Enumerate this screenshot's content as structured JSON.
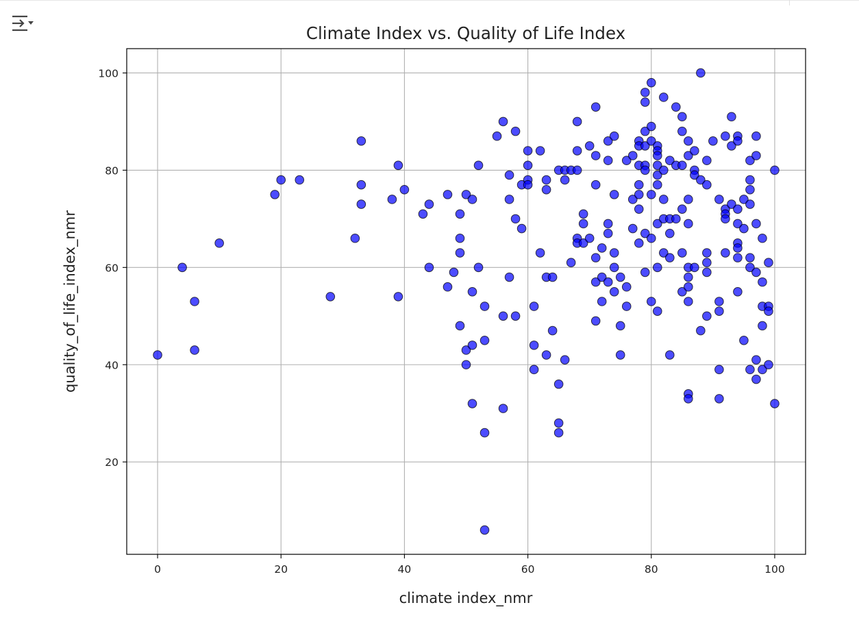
{
  "toolbar": {
    "toggle_icon": "output-toggle-icon"
  },
  "chart_data": {
    "type": "scatter",
    "title": "Climate Index vs. Quality of Life Index",
    "xlabel": "climate index_nmr",
    "ylabel": "quality_of_life_index_nmr",
    "xlim": [
      -5,
      105
    ],
    "ylim": [
      1,
      105
    ],
    "xticks": [
      0,
      20,
      40,
      60,
      80,
      100
    ],
    "yticks": [
      20,
      40,
      60,
      80,
      100
    ],
    "grid": true,
    "marker_color": "#0000ff",
    "marker_edge_color": "#000000",
    "marker_alpha": 0.7,
    "points": [
      [
        0,
        42
      ],
      [
        4,
        60
      ],
      [
        6,
        53
      ],
      [
        6,
        43
      ],
      [
        10,
        65
      ],
      [
        19,
        75
      ],
      [
        20,
        78
      ],
      [
        23,
        78
      ],
      [
        28,
        54
      ],
      [
        32,
        66
      ],
      [
        33,
        86
      ],
      [
        33,
        77
      ],
      [
        33,
        73
      ],
      [
        38,
        74
      ],
      [
        39,
        81
      ],
      [
        39,
        54
      ],
      [
        40,
        76
      ],
      [
        43,
        71
      ],
      [
        44,
        73
      ],
      [
        44,
        60
      ],
      [
        47,
        75
      ],
      [
        47,
        56
      ],
      [
        48,
        59
      ],
      [
        49,
        71
      ],
      [
        49,
        66
      ],
      [
        49,
        63
      ],
      [
        49,
        48
      ],
      [
        50,
        75
      ],
      [
        50,
        43
      ],
      [
        50,
        40
      ],
      [
        51,
        74
      ],
      [
        51,
        55
      ],
      [
        51,
        44
      ],
      [
        51,
        32
      ],
      [
        52,
        81
      ],
      [
        52,
        60
      ],
      [
        53,
        52
      ],
      [
        53,
        45
      ],
      [
        53,
        26
      ],
      [
        53,
        6
      ],
      [
        55,
        87
      ],
      [
        56,
        90
      ],
      [
        56,
        50
      ],
      [
        56,
        31
      ],
      [
        57,
        79
      ],
      [
        57,
        74
      ],
      [
        57,
        58
      ],
      [
        58,
        88
      ],
      [
        58,
        70
      ],
      [
        58,
        50
      ],
      [
        59,
        68
      ],
      [
        59,
        77
      ],
      [
        60,
        84
      ],
      [
        60,
        81
      ],
      [
        60,
        78
      ],
      [
        60,
        77
      ],
      [
        61,
        52
      ],
      [
        61,
        44
      ],
      [
        61,
        39
      ],
      [
        62,
        84
      ],
      [
        62,
        63
      ],
      [
        63,
        78
      ],
      [
        63,
        76
      ],
      [
        63,
        58
      ],
      [
        63,
        42
      ],
      [
        64,
        58
      ],
      [
        64,
        47
      ],
      [
        65,
        36
      ],
      [
        65,
        28
      ],
      [
        65,
        26
      ],
      [
        65,
        80
      ],
      [
        66,
        80
      ],
      [
        66,
        78
      ],
      [
        66,
        41
      ],
      [
        67,
        80
      ],
      [
        67,
        61
      ],
      [
        68,
        90
      ],
      [
        68,
        84
      ],
      [
        68,
        80
      ],
      [
        68,
        66
      ],
      [
        68,
        65
      ],
      [
        69,
        71
      ],
      [
        69,
        69
      ],
      [
        69,
        65
      ],
      [
        70,
        85
      ],
      [
        70,
        66
      ],
      [
        71,
        93
      ],
      [
        71,
        83
      ],
      [
        71,
        77
      ],
      [
        71,
        62
      ],
      [
        71,
        57
      ],
      [
        71,
        49
      ],
      [
        72,
        64
      ],
      [
        72,
        58
      ],
      [
        72,
        53
      ],
      [
        73,
        86
      ],
      [
        73,
        82
      ],
      [
        73,
        69
      ],
      [
        73,
        67
      ],
      [
        73,
        57
      ],
      [
        74,
        87
      ],
      [
        74,
        75
      ],
      [
        74,
        63
      ],
      [
        74,
        60
      ],
      [
        74,
        55
      ],
      [
        75,
        58
      ],
      [
        75,
        48
      ],
      [
        75,
        42
      ],
      [
        76,
        82
      ],
      [
        76,
        56
      ],
      [
        76,
        52
      ],
      [
        77,
        83
      ],
      [
        77,
        74
      ],
      [
        77,
        68
      ],
      [
        78,
        86
      ],
      [
        78,
        85
      ],
      [
        78,
        81
      ],
      [
        78,
        77
      ],
      [
        78,
        75
      ],
      [
        78,
        72
      ],
      [
        78,
        65
      ],
      [
        79,
        96
      ],
      [
        79,
        94
      ],
      [
        79,
        88
      ],
      [
        79,
        85
      ],
      [
        79,
        81
      ],
      [
        79,
        80
      ],
      [
        79,
        67
      ],
      [
        79,
        59
      ],
      [
        80,
        98
      ],
      [
        80,
        89
      ],
      [
        80,
        86
      ],
      [
        80,
        75
      ],
      [
        80,
        66
      ],
      [
        80,
        53
      ],
      [
        81,
        85
      ],
      [
        81,
        84
      ],
      [
        81,
        83
      ],
      [
        81,
        81
      ],
      [
        81,
        79
      ],
      [
        81,
        77
      ],
      [
        81,
        69
      ],
      [
        81,
        60
      ],
      [
        81,
        51
      ],
      [
        82,
        95
      ],
      [
        82,
        80
      ],
      [
        82,
        74
      ],
      [
        82,
        70
      ],
      [
        82,
        63
      ],
      [
        83,
        82
      ],
      [
        83,
        70
      ],
      [
        83,
        67
      ],
      [
        83,
        62
      ],
      [
        83,
        42
      ],
      [
        84,
        93
      ],
      [
        84,
        81
      ],
      [
        84,
        70
      ],
      [
        85,
        91
      ],
      [
        85,
        88
      ],
      [
        85,
        81
      ],
      [
        85,
        72
      ],
      [
        85,
        63
      ],
      [
        85,
        55
      ],
      [
        86,
        86
      ],
      [
        86,
        83
      ],
      [
        86,
        74
      ],
      [
        86,
        69
      ],
      [
        86,
        60
      ],
      [
        86,
        58
      ],
      [
        86,
        56
      ],
      [
        86,
        53
      ],
      [
        86,
        34
      ],
      [
        86,
        33
      ],
      [
        87,
        84
      ],
      [
        87,
        80
      ],
      [
        87,
        79
      ],
      [
        87,
        60
      ],
      [
        88,
        100
      ],
      [
        88,
        78
      ],
      [
        88,
        47
      ],
      [
        89,
        82
      ],
      [
        89,
        77
      ],
      [
        89,
        63
      ],
      [
        89,
        61
      ],
      [
        89,
        59
      ],
      [
        89,
        50
      ],
      [
        90,
        86
      ],
      [
        91,
        74
      ],
      [
        91,
        53
      ],
      [
        91,
        51
      ],
      [
        91,
        39
      ],
      [
        91,
        33
      ],
      [
        92,
        87
      ],
      [
        92,
        72
      ],
      [
        92,
        71
      ],
      [
        92,
        70
      ],
      [
        92,
        63
      ],
      [
        93,
        91
      ],
      [
        93,
        85
      ],
      [
        93,
        73
      ],
      [
        94,
        87
      ],
      [
        94,
        86
      ],
      [
        94,
        72
      ],
      [
        94,
        69
      ],
      [
        94,
        65
      ],
      [
        94,
        64
      ],
      [
        94,
        62
      ],
      [
        94,
        55
      ],
      [
        95,
        74
      ],
      [
        95,
        68
      ],
      [
        95,
        45
      ],
      [
        96,
        82
      ],
      [
        96,
        78
      ],
      [
        96,
        76
      ],
      [
        96,
        73
      ],
      [
        96,
        62
      ],
      [
        96,
        60
      ],
      [
        96,
        39
      ],
      [
        97,
        87
      ],
      [
        97,
        83
      ],
      [
        97,
        69
      ],
      [
        97,
        59
      ],
      [
        97,
        41
      ],
      [
        97,
        37
      ],
      [
        98,
        66
      ],
      [
        98,
        57
      ],
      [
        98,
        52
      ],
      [
        98,
        48
      ],
      [
        98,
        39
      ],
      [
        99,
        61
      ],
      [
        99,
        52
      ],
      [
        99,
        51
      ],
      [
        99,
        40
      ],
      [
        100,
        80
      ],
      [
        100,
        32
      ]
    ]
  }
}
